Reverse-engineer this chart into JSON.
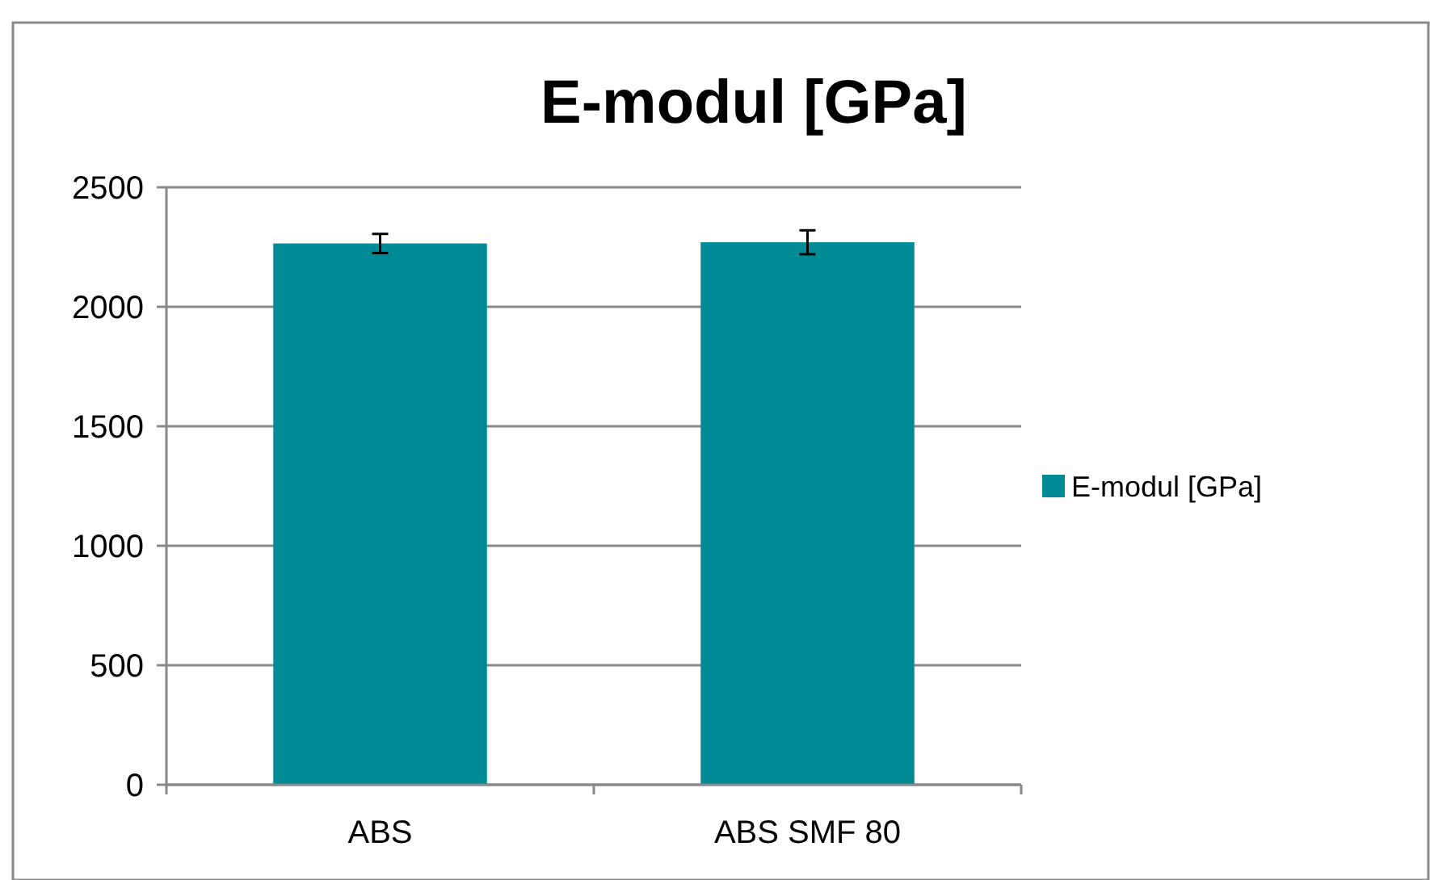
{
  "chart_data": {
    "type": "bar",
    "title": "E-modul [GPa]",
    "categories": [
      "ABS",
      "ABS SMF 80"
    ],
    "series": [
      {
        "name": "E-modul [GPa]",
        "color": "#008b96",
        "values": [
          2265,
          2270
        ],
        "errors": [
          40,
          50
        ]
      }
    ],
    "ylim": [
      0,
      2500
    ],
    "yticks": [
      0,
      500,
      1000,
      1500,
      2000,
      2500
    ],
    "grid": "y",
    "legend": "right"
  }
}
